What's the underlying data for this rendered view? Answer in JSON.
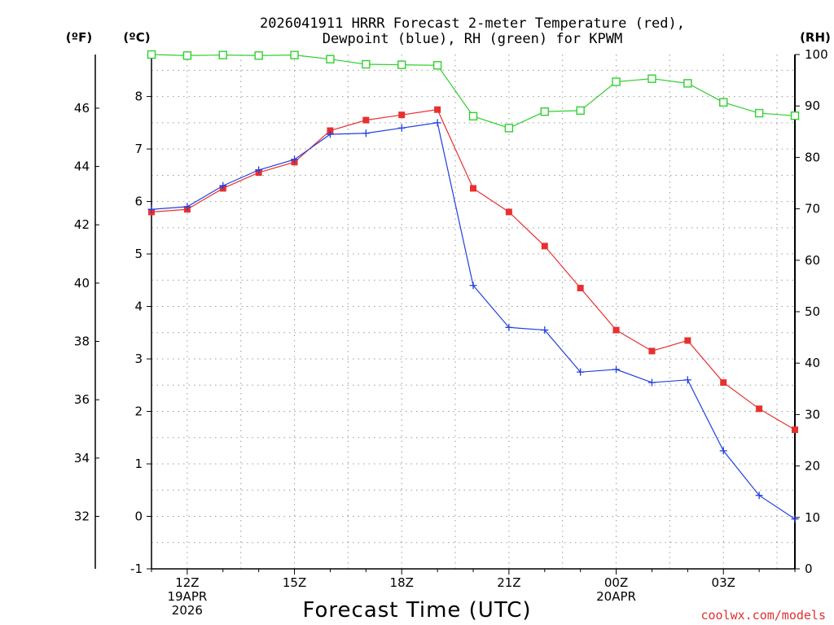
{
  "chart_data": {
    "type": "line",
    "title": "2026041911 HRRR Forecast 2-meter Temperature (red),",
    "title_line2": "Dewpoint (blue), RH (green) for KPWM",
    "xlabel": "Forecast Time (UTC)",
    "credit": "coolwx.com/models",
    "left_units_f": "(ºF)",
    "left_units_c": "(ºC)",
    "right_units": "(RH)",
    "x_hours": [
      11,
      12,
      13,
      14,
      15,
      16,
      17,
      18,
      19,
      20,
      21,
      22,
      23,
      24,
      25,
      26,
      27,
      28,
      29
    ],
    "xlim": [
      11,
      29
    ],
    "ylim_c": [
      -1,
      8.8
    ],
    "ylim_rh": [
      0,
      100
    ],
    "x_ticks": [
      {
        "hour": 12,
        "lines": [
          "12Z",
          "19APR",
          "2026"
        ]
      },
      {
        "hour": 15,
        "lines": [
          "15Z"
        ]
      },
      {
        "hour": 18,
        "lines": [
          "18Z"
        ]
      },
      {
        "hour": 21,
        "lines": [
          "21Z"
        ]
      },
      {
        "hour": 24,
        "lines": [
          "00Z",
          "20APR"
        ]
      },
      {
        "hour": 27,
        "lines": [
          "03Z"
        ]
      }
    ],
    "y_ticks_c": [
      "-1",
      "0",
      "1",
      "2",
      "3",
      "4",
      "5",
      "6",
      "7",
      "8"
    ],
    "y_ticks_f": [
      "32",
      "34",
      "36",
      "38",
      "40",
      "42",
      "44",
      "46"
    ],
    "y_ticks_rh": [
      "0",
      "10",
      "20",
      "30",
      "40",
      "50",
      "60",
      "70",
      "80",
      "90",
      "100"
    ],
    "series": [
      {
        "name": "Temperature",
        "units": "C",
        "color": "#e83030",
        "marker": "filled-square",
        "values": [
          5.8,
          5.85,
          6.25,
          6.55,
          6.75,
          7.35,
          7.55,
          7.65,
          7.75,
          6.25,
          5.8,
          5.15,
          4.35,
          3.55,
          3.15,
          3.35,
          2.55,
          2.05,
          1.65
        ]
      },
      {
        "name": "Dewpoint",
        "units": "C",
        "color": "#2040e0",
        "marker": "plus",
        "values": [
          5.85,
          5.9,
          6.3,
          6.6,
          6.8,
          7.28,
          7.3,
          7.4,
          7.5,
          4.4,
          3.6,
          3.55,
          2.75,
          2.8,
          2.55,
          2.6,
          1.25,
          0.4,
          -0.05
        ]
      },
      {
        "name": "RH",
        "units": "%",
        "color": "#30d030",
        "marker": "open-square",
        "values": [
          100,
          99.8,
          99.9,
          99.8,
          99.9,
          99.1,
          98.1,
          98.0,
          97.9,
          88.0,
          85.7,
          88.9,
          89.1,
          94.7,
          95.3,
          94.4,
          90.7,
          88.6,
          88.1
        ]
      }
    ]
  }
}
